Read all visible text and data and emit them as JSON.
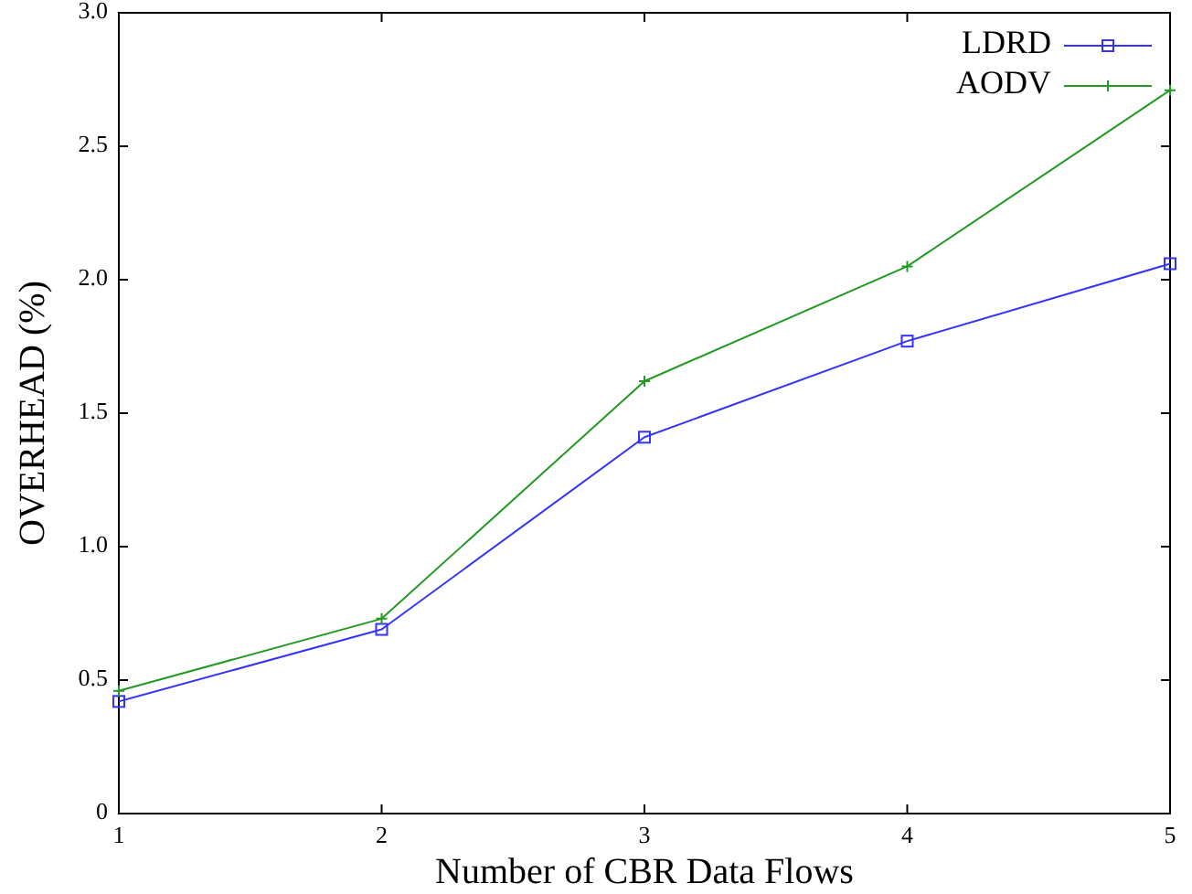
{
  "chart_data": {
    "type": "line",
    "xlabel": "Number of CBR Data Flows",
    "ylabel": "OVERHEAD (%)",
    "x": [
      1,
      2,
      3,
      4,
      5
    ],
    "series": [
      {
        "name": "LDRD",
        "color": "#3333ff",
        "marker": "square",
        "values": [
          0.42,
          0.69,
          1.41,
          1.77,
          2.06
        ]
      },
      {
        "name": "AODV",
        "color": "#229922",
        "marker": "cross",
        "values": [
          0.46,
          0.73,
          1.62,
          2.05,
          2.71
        ]
      }
    ],
    "xlim": [
      1,
      5
    ],
    "xticks": [
      1,
      2,
      3,
      4,
      5
    ],
    "ylim": [
      0,
      3
    ],
    "yticks": [
      0,
      0.5,
      {
        "value": 1,
        "label": "1.0"
      },
      1.5,
      {
        "value": 2,
        "label": "2.0"
      },
      2.5,
      {
        "value": 3,
        "label": "3.0"
      }
    ],
    "grid": false,
    "legend": "top right",
    "line_style": "solid"
  }
}
